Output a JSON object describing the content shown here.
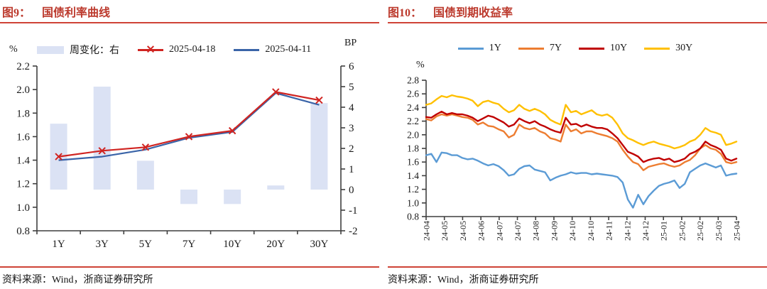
{
  "panels": [
    {
      "figure_label": "图9：",
      "title": "国债利率曲线",
      "source": "资料来源：Wind，浙商证券研究所"
    },
    {
      "figure_label": "图10：",
      "title": "国债到期收益率",
      "source": "资料来源：Wind，浙商证券研究所"
    }
  ],
  "colors": {
    "title_red": "#bc3a2d",
    "rule_red": "#cf4337",
    "axis": "#3f3f3f",
    "tick_text": "#1a1a1a"
  },
  "chart_data": [
    {
      "type": "bar+line",
      "title": "国债利率曲线",
      "left_axis_label": "%",
      "right_axis_label": "BP",
      "categories": [
        "1Y",
        "3Y",
        "5Y",
        "7Y",
        "10Y",
        "20Y",
        "30Y"
      ],
      "left_ylim": [
        0.8,
        2.2
      ],
      "left_ticks": [
        "2.2",
        "2.0",
        "1.8",
        "1.6",
        "1.4",
        "1.2",
        "1.0",
        "0.8"
      ],
      "right_ylim": [
        -2,
        6
      ],
      "right_ticks": [
        "6",
        "5",
        "4",
        "3",
        "2",
        "1",
        "0",
        "-1",
        "-2"
      ],
      "legend_position": "top",
      "bar_series": {
        "id": "weekly-change",
        "name": "周变化：右",
        "axis": "right",
        "color": "#dbe2f4",
        "values": [
          3.2,
          5.0,
          1.4,
          -0.7,
          -0.7,
          0.2,
          4.2
        ]
      },
      "line_series": [
        {
          "id": "2025-04-18",
          "name": "2025-04-18",
          "color": "#d02421",
          "marker": "x",
          "values": [
            1.43,
            1.48,
            1.51,
            1.6,
            1.65,
            1.98,
            1.91
          ]
        },
        {
          "id": "2025-04-11",
          "name": "2025-04-11",
          "color": "#3a64a8",
          "marker": "none",
          "values": [
            1.4,
            1.43,
            1.49,
            1.59,
            1.64,
            1.97,
            1.87
          ]
        }
      ]
    },
    {
      "type": "line",
      "title": "国债到期收益率",
      "y_axis_label": "%",
      "ylim": [
        0.8,
        2.8
      ],
      "yticks": [
        "2.8",
        "2.6",
        "2.4",
        "2.2",
        "2.0",
        "1.8",
        "1.6",
        "1.4",
        "1.2",
        "1.0",
        "0.8"
      ],
      "x_tick_labels": [
        "24-04",
        "24-05",
        "24-05",
        "24-06",
        "24-07",
        "24-07",
        "24-08",
        "24-09",
        "24-10",
        "24-10",
        "24-11",
        "24-12",
        "24-12",
        "25-01",
        "25-02",
        "25-02",
        "25-03",
        "25-04"
      ],
      "legend_position": "top",
      "series": [
        {
          "id": "1y",
          "name": "1Y",
          "color": "#5b9bd5",
          "values": [
            1.7,
            1.72,
            1.6,
            1.74,
            1.73,
            1.7,
            1.7,
            1.66,
            1.64,
            1.65,
            1.62,
            1.58,
            1.55,
            1.57,
            1.54,
            1.48,
            1.4,
            1.42,
            1.5,
            1.54,
            1.55,
            1.49,
            1.47,
            1.45,
            1.33,
            1.37,
            1.4,
            1.42,
            1.45,
            1.43,
            1.44,
            1.44,
            1.42,
            1.43,
            1.42,
            1.41,
            1.4,
            1.38,
            1.3,
            1.05,
            0.93,
            1.12,
            0.98,
            1.1,
            1.18,
            1.25,
            1.28,
            1.3,
            1.33,
            1.22,
            1.28,
            1.45,
            1.5,
            1.55,
            1.58,
            1.55,
            1.52,
            1.55,
            1.4,
            1.42,
            1.43
          ]
        },
        {
          "id": "7y",
          "name": "7Y",
          "color": "#ed7d31",
          "values": [
            2.23,
            2.21,
            2.27,
            2.3,
            2.28,
            2.3,
            2.28,
            2.26,
            2.25,
            2.22,
            2.15,
            2.18,
            2.13,
            2.12,
            2.08,
            2.05,
            1.96,
            2.0,
            2.15,
            2.1,
            2.08,
            2.1,
            2.05,
            2.02,
            1.95,
            1.93,
            1.9,
            2.15,
            2.05,
            2.08,
            2.02,
            2.05,
            2.05,
            2.02,
            2.0,
            1.98,
            1.95,
            1.9,
            1.78,
            1.68,
            1.6,
            1.57,
            1.48,
            1.53,
            1.55,
            1.57,
            1.58,
            1.55,
            1.53,
            1.55,
            1.6,
            1.63,
            1.7,
            1.8,
            1.85,
            1.8,
            1.78,
            1.72,
            1.6,
            1.58,
            1.6
          ]
        },
        {
          "id": "10y",
          "name": "10Y",
          "color": "#c00000",
          "values": [
            2.26,
            2.25,
            2.3,
            2.34,
            2.3,
            2.32,
            2.3,
            2.3,
            2.28,
            2.25,
            2.2,
            2.24,
            2.28,
            2.26,
            2.22,
            2.18,
            2.12,
            2.15,
            2.24,
            2.2,
            2.17,
            2.2,
            2.15,
            2.12,
            2.08,
            2.05,
            2.03,
            2.25,
            2.15,
            2.16,
            2.12,
            2.15,
            2.12,
            2.1,
            2.1,
            2.08,
            2.02,
            1.95,
            1.85,
            1.75,
            1.72,
            1.68,
            1.6,
            1.63,
            1.65,
            1.66,
            1.63,
            1.65,
            1.6,
            1.62,
            1.65,
            1.72,
            1.75,
            1.8,
            1.9,
            1.85,
            1.82,
            1.78,
            1.65,
            1.62,
            1.65
          ]
        },
        {
          "id": "30y",
          "name": "30Y",
          "color": "#ffc000",
          "values": [
            2.44,
            2.46,
            2.52,
            2.57,
            2.55,
            2.58,
            2.56,
            2.55,
            2.53,
            2.5,
            2.42,
            2.48,
            2.5,
            2.47,
            2.45,
            2.38,
            2.33,
            2.36,
            2.44,
            2.38,
            2.35,
            2.38,
            2.35,
            2.3,
            2.22,
            2.18,
            2.15,
            2.44,
            2.33,
            2.35,
            2.3,
            2.33,
            2.36,
            2.3,
            2.28,
            2.3,
            2.25,
            2.15,
            2.02,
            1.95,
            1.92,
            1.88,
            1.85,
            1.88,
            1.9,
            1.87,
            1.85,
            1.83,
            1.8,
            1.82,
            1.85,
            1.9,
            1.93,
            2.0,
            2.1,
            2.05,
            2.03,
            2.0,
            1.85,
            1.87,
            1.9
          ]
        }
      ]
    }
  ]
}
